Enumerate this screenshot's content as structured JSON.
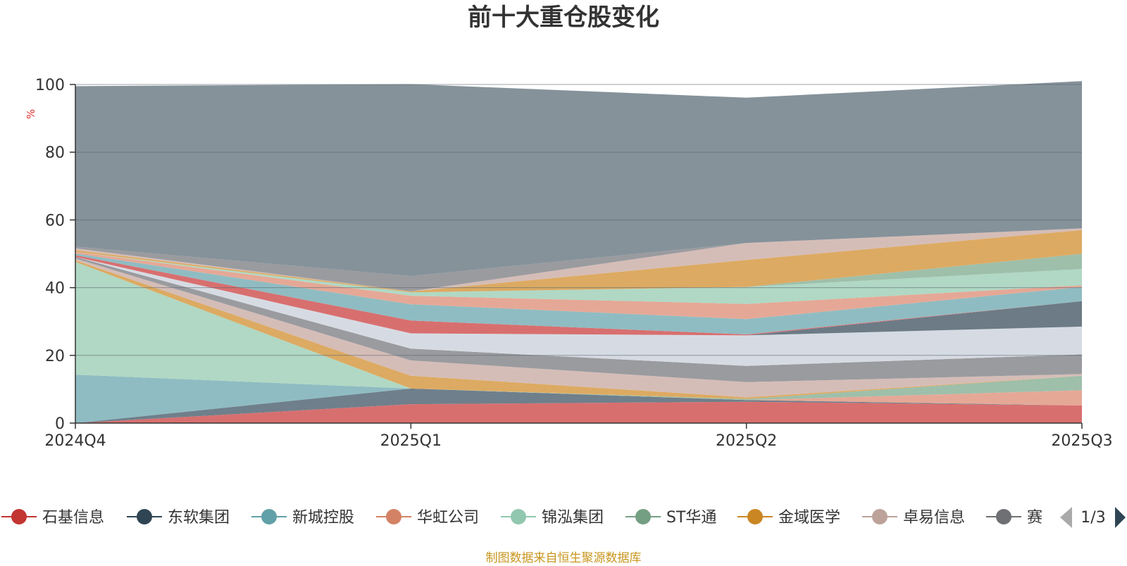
{
  "chart_data": {
    "type": "area",
    "stacked": true,
    "title": "前十大重仓股变化",
    "ylabel": "%",
    "ylim": [
      0,
      100
    ],
    "yticks": [
      0,
      20,
      40,
      60,
      80,
      100
    ],
    "x": [
      "2024Q4",
      "2025Q1",
      "2025Q2",
      "2025Q3"
    ],
    "grid": true,
    "series": [
      {
        "name": "石基信息",
        "color": "#d86f6f",
        "legend_color": "#c23531",
        "values": [
          0,
          5.6,
          6.3,
          5.2
        ]
      },
      {
        "name": "东软集团",
        "color": "#6f7f8b",
        "legend_color": "#2f4554",
        "values": [
          0,
          4.6,
          0.5,
          0
        ]
      },
      {
        "name": "新城控股",
        "color": "#8fbcc2",
        "legend_color": "#61a0a8",
        "values": [
          14.3,
          0,
          0,
          0
        ]
      },
      {
        "name": "华虹公司",
        "color": "#e5a896",
        "legend_color": "#d48265",
        "values": [
          0,
          0,
          0,
          4.5
        ]
      },
      {
        "name": "锦泓集团",
        "color": "#b0d8c4",
        "legend_color": "#91c7ae",
        "values": [
          33.3,
          0,
          0,
          0
        ]
      },
      {
        "name": "ST华通",
        "color": "#9ebfaa",
        "legend_color": "#749f83",
        "values": [
          0,
          0,
          0.3,
          4.3
        ]
      },
      {
        "name": "金域医学",
        "color": "#dcaa62",
        "legend_color": "#ca8622",
        "values": [
          0.5,
          3.8,
          0.5,
          0
        ]
      },
      {
        "name": "卓易信息",
        "color": "#d5bdb7",
        "legend_color": "#bda29a",
        "values": [
          0.5,
          4.5,
          4.5,
          0.5
        ]
      },
      {
        "name": "赛",
        "color": "#9a9b9f",
        "legend_color": "#6e7074",
        "values": [
          0.5,
          3.5,
          4.8,
          5.8
        ]
      },
      {
        "name": "",
        "color": "#d6dbe3",
        "values": [
          0,
          4.5,
          9,
          8.2
        ]
      },
      {
        "name": "",
        "color": "#6c7b86",
        "values": [
          0,
          0,
          0,
          7.5
        ]
      },
      {
        "name": "",
        "color": "#d86f6f",
        "values": [
          0.5,
          3.8,
          0.3,
          0
        ]
      },
      {
        "name": "",
        "color": "#8fbcc2",
        "values": [
          0.5,
          4.8,
          4.5,
          4.2
        ]
      },
      {
        "name": "",
        "color": "#e5a896",
        "values": [
          0.5,
          2.5,
          4.5,
          0.5
        ]
      },
      {
        "name": "",
        "color": "#b0d8c4",
        "values": [
          0,
          1,
          5,
          4.8
        ]
      },
      {
        "name": "",
        "color": "#9ebfaa",
        "values": [
          0,
          0,
          0,
          4.5
        ]
      },
      {
        "name": "",
        "color": "#dcaa62",
        "values": [
          0.5,
          0.3,
          8,
          7
        ]
      },
      {
        "name": "",
        "color": "#d5bdb7",
        "values": [
          0.5,
          0,
          5,
          0.5
        ]
      },
      {
        "name": "",
        "color": "#9a9b9f",
        "values": [
          0.5,
          4.5,
          0,
          0
        ]
      },
      {
        "name": "",
        "color": "#85929a",
        "values": [
          47.4,
          56.7,
          42.9,
          43.5
        ]
      }
    ],
    "legend": {
      "position": "bottom",
      "page": "1/3"
    }
  },
  "source_note": "制图数据来自恒生聚源数据库"
}
